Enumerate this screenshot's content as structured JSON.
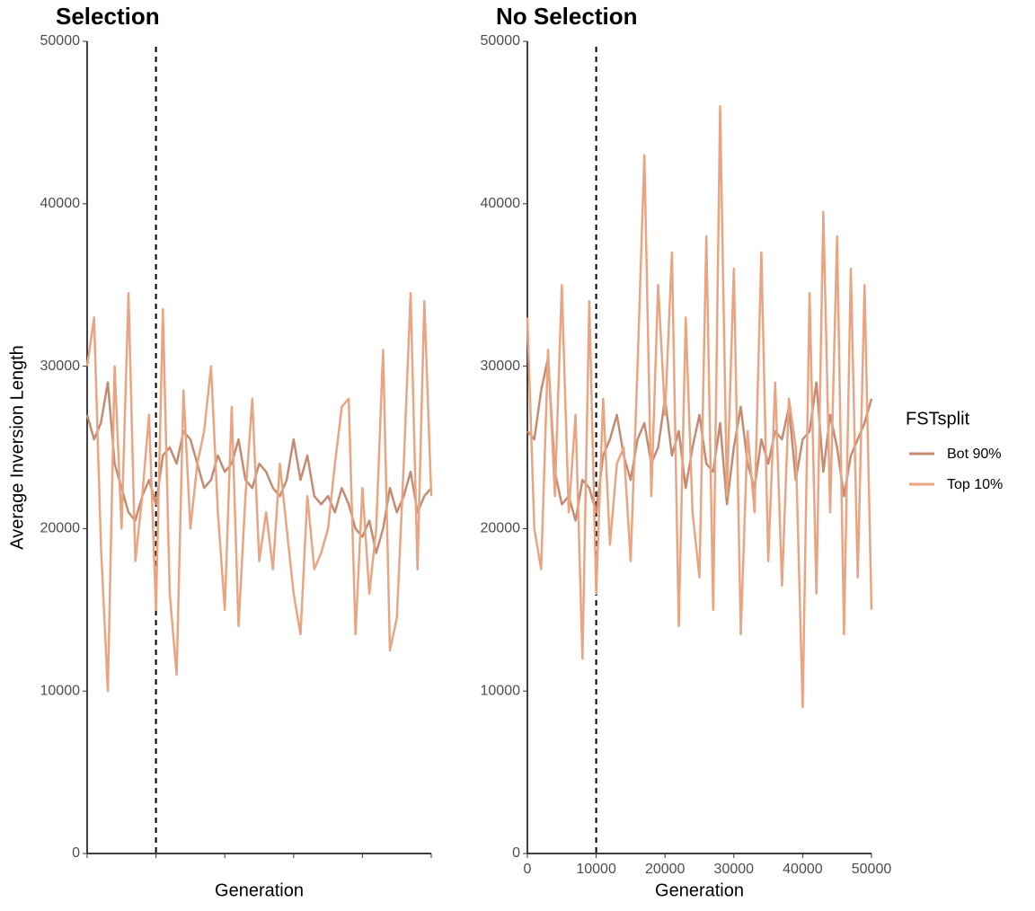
{
  "chart_data": [
    {
      "type": "line",
      "title": "Selection",
      "xlabel": "Generation",
      "ylabel": "Average Inversion Length",
      "legend_title": "FSTsplit",
      "x": [
        0,
        1000,
        2000,
        3000,
        4000,
        5000,
        6000,
        7000,
        8000,
        9000,
        10000,
        11000,
        12000,
        13000,
        14000,
        15000,
        16000,
        17000,
        18000,
        19000,
        20000,
        21000,
        22000,
        23000,
        24000,
        25000,
        26000,
        27000,
        28000,
        29000,
        30000,
        31000,
        32000,
        33000,
        34000,
        35000,
        36000,
        37000,
        38000,
        39000,
        40000,
        41000,
        42000,
        43000,
        44000,
        45000,
        46000,
        47000,
        48000,
        49000,
        50000
      ],
      "series": [
        {
          "name": "Bot 90%",
          "color": "#c48b73",
          "values": [
            27000,
            25500,
            26500,
            29000,
            24000,
            22500,
            21000,
            20500,
            22000,
            23000,
            21500,
            24500,
            25000,
            24000,
            26000,
            25500,
            24000,
            22500,
            23000,
            24500,
            23500,
            24000,
            25500,
            23000,
            22500,
            24000,
            23500,
            22500,
            22000,
            23000,
            25500,
            23000,
            24500,
            22000,
            21500,
            22000,
            21000,
            22500,
            21500,
            20000,
            19500,
            20500,
            18500,
            20000,
            22500,
            21000,
            22000,
            23500,
            21000,
            22000,
            22500
          ]
        },
        {
          "name": "Top 10%",
          "color": "#e9a582",
          "values": [
            30000,
            33000,
            19000,
            10000,
            30000,
            20000,
            34500,
            18000,
            22000,
            27000,
            15000,
            33500,
            16000,
            11000,
            28500,
            20000,
            24000,
            26000,
            30000,
            21000,
            15000,
            27500,
            14000,
            22000,
            28000,
            18000,
            21000,
            17500,
            24000,
            20000,
            16000,
            13500,
            22000,
            17500,
            18500,
            20000,
            24000,
            27500,
            28000,
            13500,
            22500,
            16000,
            20000,
            31000,
            12500,
            14500,
            24000,
            34500,
            17500,
            34000,
            22000
          ]
        }
      ],
      "xlim": [
        0,
        50000
      ],
      "ylim": [
        0,
        50000
      ],
      "xticks": [
        0,
        10000,
        20000,
        30000,
        40000,
        50000
      ],
      "yticks": [
        0,
        10000,
        20000,
        30000,
        40000,
        50000
      ],
      "vline": 10000
    },
    {
      "type": "line",
      "title": "No Selection",
      "xlabel": "Generation",
      "x": [
        0,
        1000,
        2000,
        3000,
        4000,
        5000,
        6000,
        7000,
        8000,
        9000,
        10000,
        11000,
        12000,
        13000,
        14000,
        15000,
        16000,
        17000,
        18000,
        19000,
        20000,
        21000,
        22000,
        23000,
        24000,
        25000,
        26000,
        27000,
        28000,
        29000,
        30000,
        31000,
        32000,
        33000,
        34000,
        35000,
        36000,
        37000,
        38000,
        39000,
        40000,
        41000,
        42000,
        43000,
        44000,
        45000,
        46000,
        47000,
        48000,
        49000,
        50000
      ],
      "series": [
        {
          "color": "#c48b73",
          "values": [
            26000,
            25500,
            28500,
            30500,
            23500,
            21500,
            22000,
            20500,
            23000,
            22500,
            21000,
            24500,
            25500,
            27000,
            24500,
            23000,
            25500,
            26500,
            24000,
            25000,
            28000,
            24500,
            26000,
            22500,
            25000,
            27000,
            24000,
            23500,
            26500,
            21500,
            25000,
            27500,
            24000,
            22500,
            25500,
            24000,
            26000,
            25500,
            27500,
            23000,
            25500,
            26000,
            29000,
            23500,
            27000,
            25000,
            22000,
            24500,
            25500,
            26500,
            28000
          ]
        },
        {
          "color": "#e9a582",
          "values": [
            33000,
            20000,
            17500,
            31000,
            22000,
            35000,
            21000,
            27000,
            12000,
            34000,
            16000,
            28000,
            19000,
            24000,
            25000,
            18000,
            30000,
            43000,
            22000,
            35000,
            27000,
            37000,
            14000,
            33000,
            21000,
            17000,
            38000,
            15000,
            46000,
            22000,
            36000,
            13500,
            26000,
            21000,
            37000,
            18000,
            29000,
            16500,
            28000,
            25000,
            9000,
            34500,
            16000,
            39500,
            21000,
            38000,
            13500,
            36000,
            17000,
            35000,
            15000
          ]
        }
      ],
      "xlim": [
        0,
        50000
      ],
      "ylim": [
        0,
        50000
      ],
      "xticks": [
        0,
        10000,
        20000,
        30000,
        40000,
        50000
      ],
      "yticks": [
        0,
        10000,
        20000,
        30000,
        40000,
        50000
      ],
      "vline": 10000
    }
  ]
}
